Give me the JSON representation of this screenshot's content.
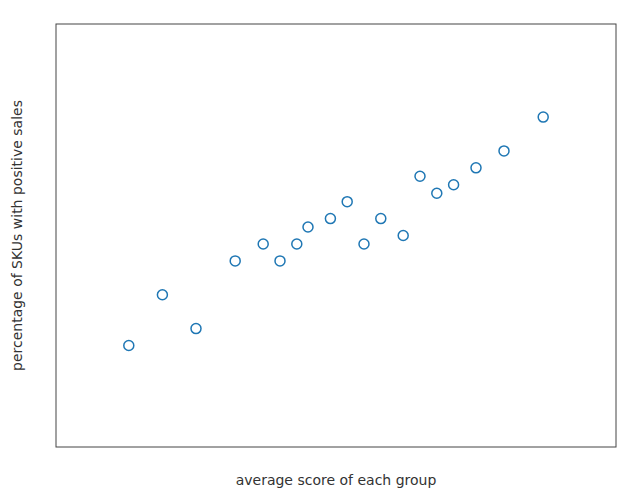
{
  "chart_data": {
    "type": "scatter",
    "x": [
      0.13,
      0.19,
      0.25,
      0.32,
      0.37,
      0.4,
      0.43,
      0.45,
      0.49,
      0.52,
      0.55,
      0.58,
      0.62,
      0.65,
      0.68,
      0.71,
      0.75,
      0.8,
      0.87
    ],
    "y": [
      0.62,
      0.68,
      0.64,
      0.72,
      0.74,
      0.72,
      0.74,
      0.76,
      0.77,
      0.79,
      0.74,
      0.77,
      0.75,
      0.82,
      0.8,
      0.81,
      0.83,
      0.85,
      0.89
    ],
    "xlabel": "average score of each group",
    "ylabel": "percentage of SKUs with positive sales",
    "xlim": [
      0.0,
      1.0
    ],
    "ylim": [
      0.5,
      1.0
    ],
    "tick_labels": false,
    "grid": false,
    "color": "#1f77b4",
    "marker": "open"
  }
}
